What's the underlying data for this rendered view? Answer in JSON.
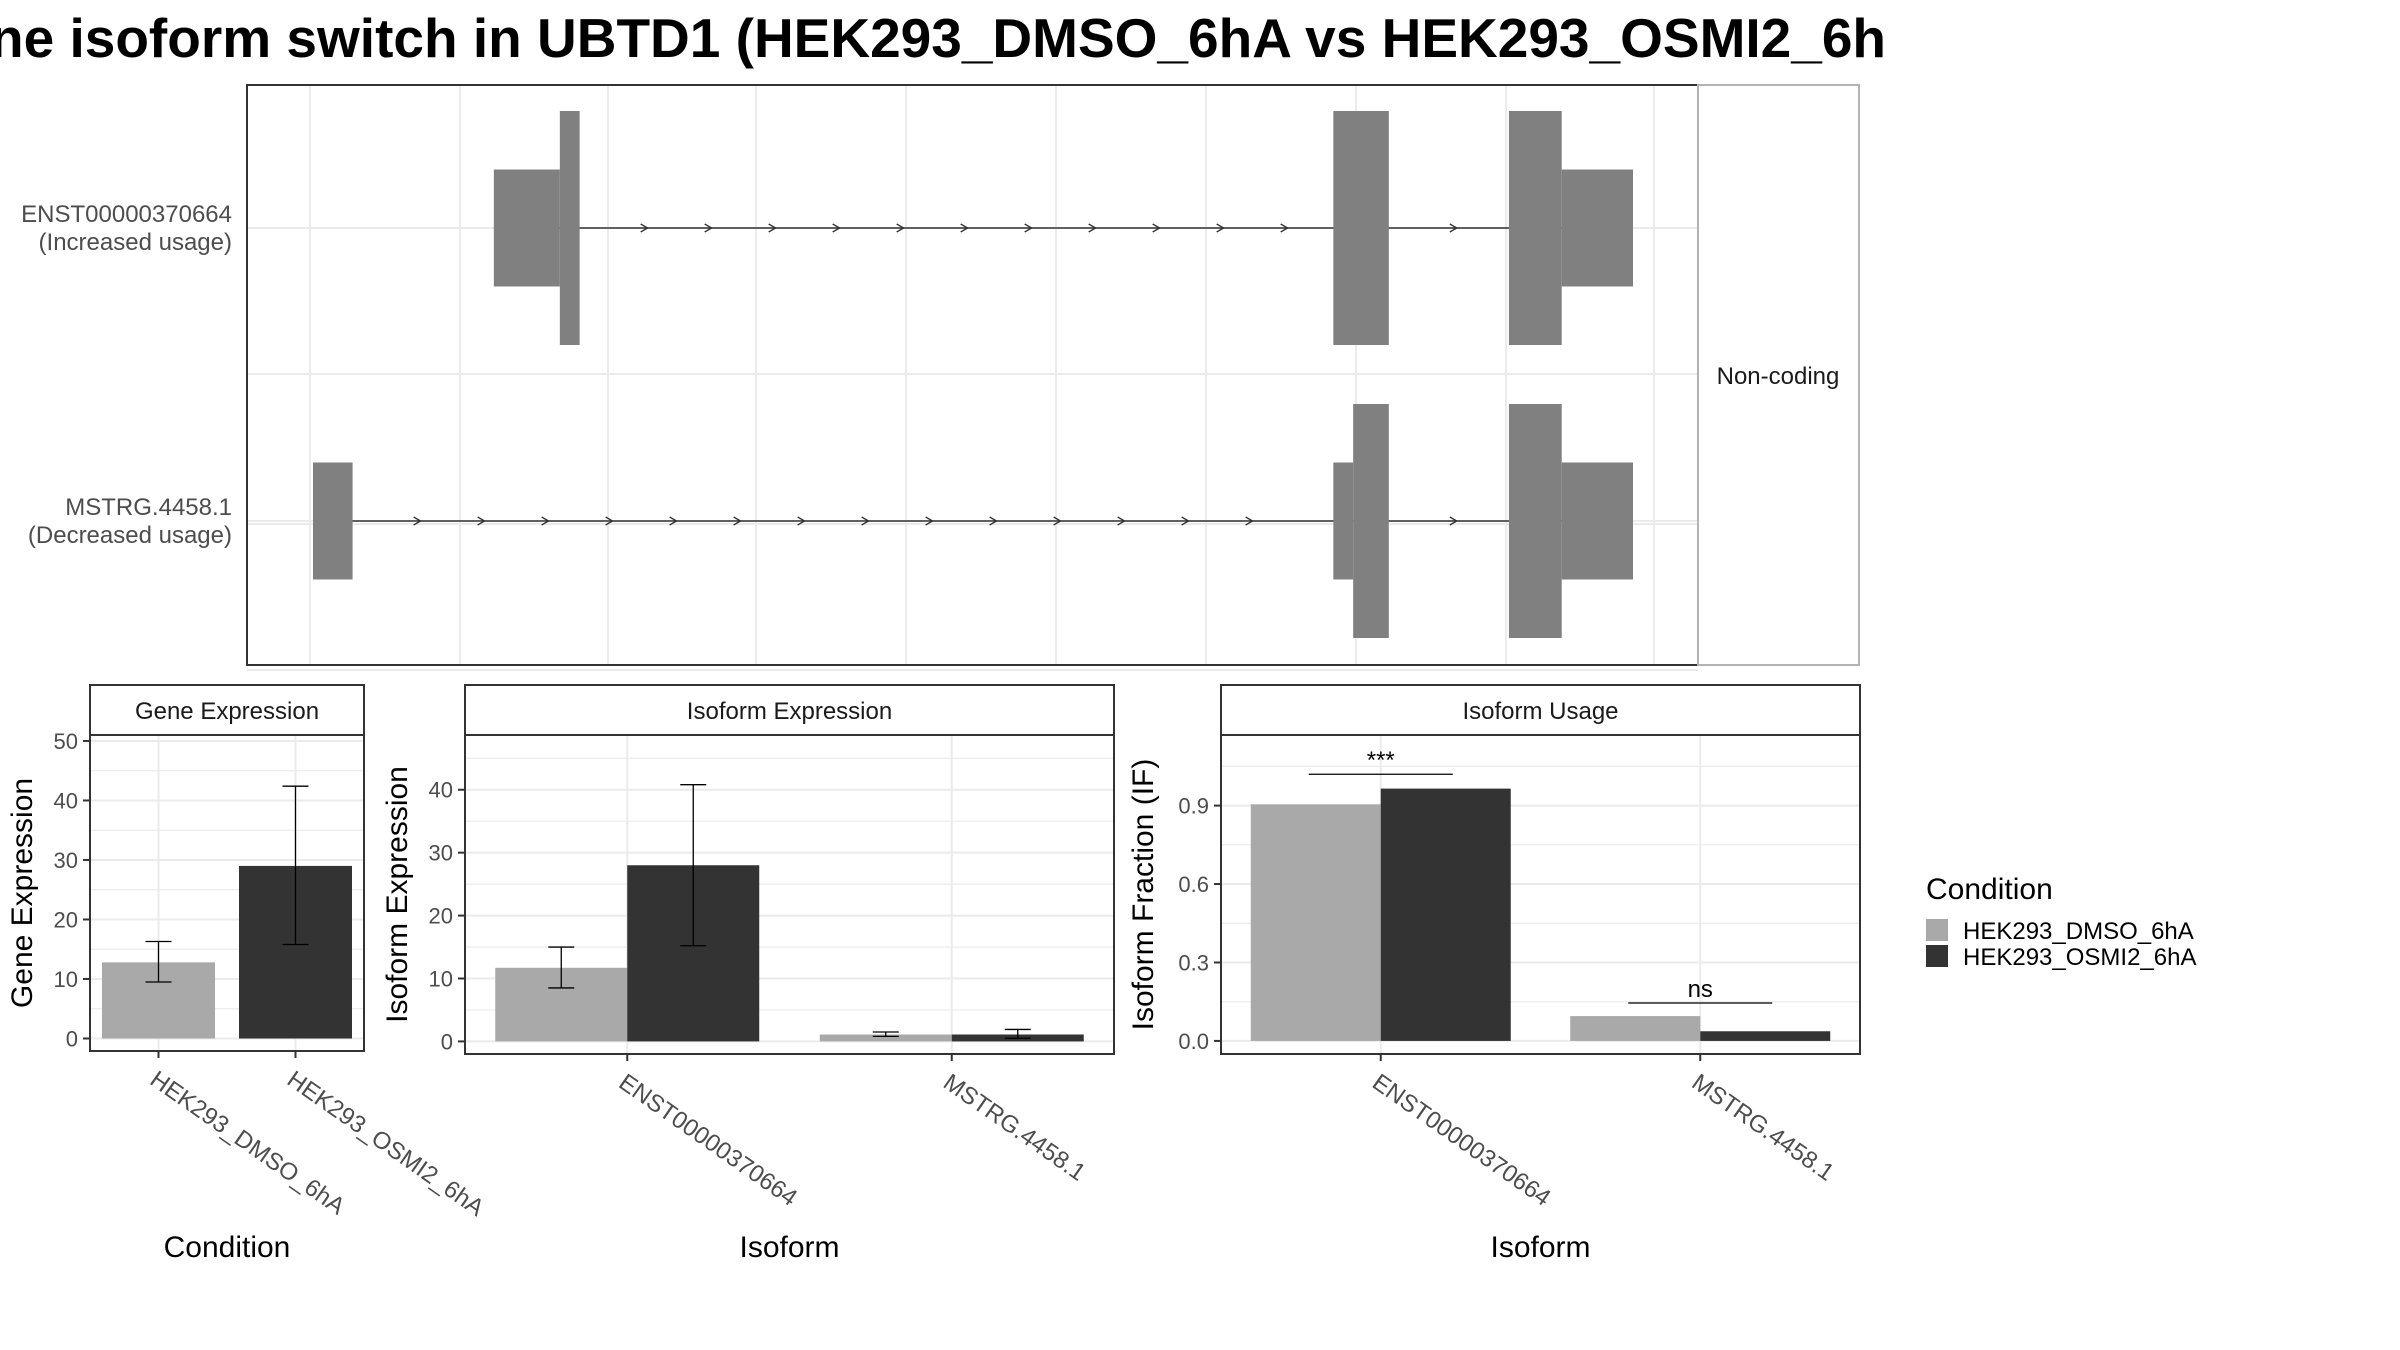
{
  "title": "ne isoform switch in UBTD1 (HEK293_DMSO_6hA vs HEK293_OSMI2_6h",
  "colors": {
    "dmso": "#a9a9a9",
    "osmi": "#333333",
    "exon": "#808080",
    "grid": "#ebebeb",
    "frame": "#333333",
    "strip": "#ffffff",
    "text": "#000000",
    "tick": "#4d4d4d"
  },
  "chart_data": [
    {
      "type": "other",
      "panel": "transcript-structure",
      "strip_label": "Non-coding",
      "tracks": [
        {
          "name": "ENST00000370664",
          "label_lines": [
            "ENST00000370664",
            "(Increased usage)"
          ],
          "exons": [
            {
              "start": 0.137,
              "end": 0.187,
              "kind": "utr"
            },
            {
              "start": 0.187,
              "end": 0.202,
              "kind": "cds"
            },
            {
              "start": 0.773,
              "end": 0.815,
              "kind": "cds"
            },
            {
              "start": 0.906,
              "end": 0.946,
              "kind": "cds"
            },
            {
              "start": 0.946,
              "end": 1.0,
              "kind": "utr"
            }
          ]
        },
        {
          "name": "MSTRG.4458.1",
          "label_lines": [
            "MSTRG.4458.1",
            "(Decreased usage)"
          ],
          "exons": [
            {
              "start": 0.0,
              "end": 0.03,
              "kind": "utr"
            },
            {
              "start": 0.773,
              "end": 0.788,
              "kind": "utr"
            },
            {
              "start": 0.788,
              "end": 0.815,
              "kind": "cds"
            },
            {
              "start": 0.906,
              "end": 0.946,
              "kind": "cds"
            },
            {
              "start": 0.946,
              "end": 1.0,
              "kind": "utr"
            }
          ]
        }
      ]
    },
    {
      "type": "bar",
      "panel": "gene-expression",
      "strip_label": "Gene Expression",
      "xlabel": "Condition",
      "ylabel": "Gene Expression",
      "categories": [
        "HEK293_DMSO_6hA",
        "HEK293_OSMI2_6hA"
      ],
      "values": [
        12.8,
        29.0
      ],
      "error_low": [
        9.5,
        15.8
      ],
      "error_high": [
        16.3,
        42.4
      ],
      "ylim": [
        -2.1,
        51
      ],
      "yticks": [
        0,
        10,
        20,
        30,
        40,
        50
      ]
    },
    {
      "type": "bar",
      "panel": "isoform-expression",
      "strip_label": "Isoform Expression",
      "xlabel": "Isoform",
      "ylabel": "Isoform Expression",
      "categories": [
        "ENST00000370664",
        "MSTRG.4458.1"
      ],
      "series": [
        {
          "name": "HEK293_DMSO_6hA",
          "values": [
            11.7,
            1.1
          ],
          "error_low": [
            8.5,
            0.8
          ],
          "error_high": [
            15.0,
            1.5
          ]
        },
        {
          "name": "HEK293_OSMI2_6hA",
          "values": [
            28.0,
            1.1
          ],
          "error_low": [
            15.2,
            0.5
          ],
          "error_high": [
            40.8,
            1.9
          ]
        }
      ],
      "ylim": [
        -2.0,
        48.7
      ],
      "yticks": [
        0,
        10,
        20,
        30,
        40
      ]
    },
    {
      "type": "bar",
      "panel": "isoform-usage",
      "strip_label": "Isoform Usage",
      "xlabel": "Isoform",
      "ylabel": "Isoform Fraction (IF)",
      "categories": [
        "ENST00000370664",
        "MSTRG.4458.1"
      ],
      "series": [
        {
          "name": "HEK293_DMSO_6hA",
          "values": [
            0.905,
            0.095
          ]
        },
        {
          "name": "HEK293_OSMI2_6hA",
          "values": [
            0.965,
            0.037
          ]
        }
      ],
      "significance": [
        {
          "category": "ENST00000370664",
          "label": "***",
          "y": 1.02
        },
        {
          "category": "MSTRG.4458.1",
          "label": "ns",
          "y": 0.145
        }
      ],
      "ylim": [
        -0.05,
        1.17
      ],
      "yticks": [
        0.0,
        0.3,
        0.6,
        0.9
      ],
      "ytick_labels": [
        "0.0",
        "0.3",
        "0.6",
        "0.9"
      ]
    }
  ],
  "legend": {
    "title": "Condition",
    "entries": [
      {
        "label": "HEK293_DMSO_6hA",
        "color": "#a9a9a9"
      },
      {
        "label": "HEK293_OSMI2_6hA",
        "color": "#333333"
      }
    ]
  }
}
